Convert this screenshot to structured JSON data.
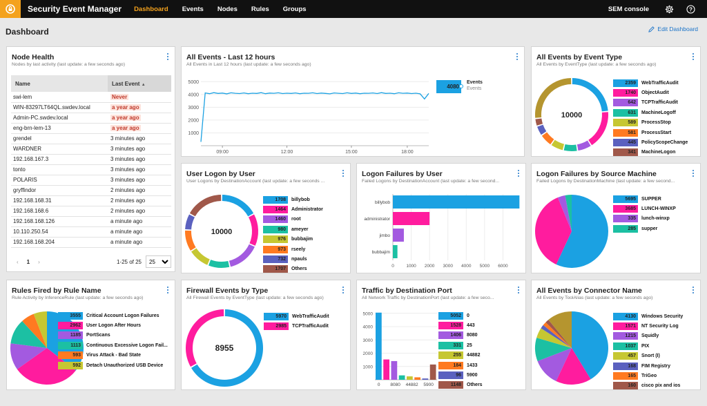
{
  "app": {
    "title": "Security Event Manager",
    "console": "SEM console"
  },
  "nav": [
    {
      "label": "Dashboard",
      "active": true
    },
    {
      "label": "Events",
      "active": false
    },
    {
      "label": "Nodes",
      "active": false
    },
    {
      "label": "Rules",
      "active": false
    },
    {
      "label": "Groups",
      "active": false
    }
  ],
  "page": {
    "title": "Dashboard",
    "edit_label": "Edit Dashboard"
  },
  "colors": {
    "blue": "#1ba1e2",
    "magenta": "#ff1c9e",
    "purple": "#a35ae0",
    "teal": "#1cc0a3",
    "olive": "#c6c732",
    "orange": "#ff7a21",
    "indigo": "#5b61bf",
    "brown": "#a0584a",
    "gold": "#b5952f",
    "accent": "#f4a21d"
  },
  "node_health": {
    "title": "Node Health",
    "subtitle": "Nodes by last activity (last update: a few seconds ago)",
    "col_name": "Name",
    "col_last": "Last Event",
    "rows": [
      {
        "name": "swi-lem",
        "last": "Never",
        "alert": true
      },
      {
        "name": "WIN-83297LT64QL.swdev.local",
        "last": "a year ago",
        "alert": true
      },
      {
        "name": "Admin-PC.swdev.local",
        "last": "a year ago",
        "alert": true
      },
      {
        "name": "eng-brn-lem-13",
        "last": "a year ago",
        "alert": true
      },
      {
        "name": "grendel",
        "last": "3 minutes ago",
        "alert": false
      },
      {
        "name": "WARDNER",
        "last": "3 minutes ago",
        "alert": false
      },
      {
        "name": "192.168.167.3",
        "last": "3 minutes ago",
        "alert": false
      },
      {
        "name": "tonto",
        "last": "3 minutes ago",
        "alert": false
      },
      {
        "name": "POLARIS",
        "last": "3 minutes ago",
        "alert": false
      },
      {
        "name": "gryffindor",
        "last": "2 minutes ago",
        "alert": false
      },
      {
        "name": "192.168.168.31",
        "last": "2 minutes ago",
        "alert": false
      },
      {
        "name": "192.168.168.6",
        "last": "2 minutes ago",
        "alert": false
      },
      {
        "name": "192.168.168.126",
        "last": "a minute ago",
        "alert": false
      },
      {
        "name": "10.110.250.54",
        "last": "a minute ago",
        "alert": false
      },
      {
        "name": "192.168.168.204",
        "last": "a minute ago",
        "alert": false
      }
    ],
    "pager": {
      "prev": "‹",
      "page": "1",
      "next": "›",
      "range": "1-25 of 25",
      "per_page": "25"
    }
  },
  "chart_data": [
    {
      "id": "all-events",
      "type": "line",
      "title": "All Events - Last 12 hours",
      "subtitle": "All Events in Last 12 hours (last update: a few seconds ago)",
      "x_ticks": [
        "09:00",
        "12:00",
        "15:00",
        "18:00"
      ],
      "y_ticks": [
        1000,
        2000,
        3000,
        4000,
        5000
      ],
      "ylim": [
        0,
        5500
      ],
      "series": [
        {
          "name": "Events",
          "values": [
            300,
            4120,
            4060,
            4140,
            4080,
            4110,
            4050,
            4130,
            4090,
            4070,
            4120,
            4060,
            4100,
            4080,
            4140,
            4060,
            4110,
            4090,
            4130,
            4070,
            4100,
            4080,
            4120,
            4060,
            4100,
            4090,
            4130,
            4070,
            4110,
            4080,
            4050,
            4120,
            4090,
            4070,
            4130,
            4080,
            4110,
            4060,
            4100,
            4090,
            4120,
            4070,
            4140,
            4080,
            4100,
            4060,
            4130,
            4090,
            4110,
            4070,
            4100,
            4050,
            3650,
            4080
          ]
        }
      ],
      "current_value": "4080",
      "current_label": "Events",
      "current_sub": "Events"
    },
    {
      "id": "event-type",
      "type": "donut",
      "title": "All Events by Event Type",
      "subtitle": "All Events by EventType (last update: a few seconds ago)",
      "center": "10000",
      "items": [
        {
          "value": 2359,
          "label": "WebTrafficAudit",
          "color": "#1ba1e2"
        },
        {
          "value": 1740,
          "label": "ObjectAudit",
          "color": "#ff1c9e"
        },
        {
          "value": 642,
          "label": "TCPTrafficAudit",
          "color": "#a35ae0"
        },
        {
          "value": 631,
          "label": "MachineLogoff",
          "color": "#1cc0a3"
        },
        {
          "value": 589,
          "label": "ProcessStop",
          "color": "#c6c732"
        },
        {
          "value": 581,
          "label": "ProcessStart",
          "color": "#ff7a21"
        },
        {
          "value": 445,
          "label": "PolicyScopeChange",
          "color": "#5b61bf"
        },
        {
          "value": 341,
          "label": "MachineLogon",
          "color": "#a0584a"
        }
      ],
      "others": 2672,
      "others_color": "#b5952f"
    },
    {
      "id": "user-logon",
      "type": "donut",
      "title": "User Logon by User",
      "subtitle": "User Logons by DestinationAccount (last update: a few seconds ...",
      "center": "10000",
      "items": [
        {
          "value": 1708,
          "label": "billybob",
          "color": "#1ba1e2"
        },
        {
          "value": 1464,
          "label": "Administrator",
          "color": "#ff1c9e"
        },
        {
          "value": 1460,
          "label": "root",
          "color": "#a35ae0"
        },
        {
          "value": 980,
          "label": "ameyer",
          "color": "#1cc0a3"
        },
        {
          "value": 976,
          "label": "bubbajim",
          "color": "#c6c732"
        },
        {
          "value": 973,
          "label": "rseely",
          "color": "#ff7a21"
        },
        {
          "value": 732,
          "label": "npauls",
          "color": "#5b61bf"
        },
        {
          "value": 1707,
          "label": "Others",
          "color": "#a0584a"
        }
      ]
    },
    {
      "id": "logon-failures-user",
      "type": "bar",
      "orientation": "horizontal",
      "title": "Logon Failures by User",
      "subtitle": "Failed Logons by DestinationAccount (last update: a few second...",
      "categories": [
        "billybob",
        "administrator",
        "jimbo",
        "bubbajim"
      ],
      "values": [
        6900,
        2000,
        600,
        250
      ],
      "colors": [
        "#1ba1e2",
        "#ff1c9e",
        "#a35ae0",
        "#1cc0a3"
      ],
      "x_ticks": [
        0,
        1000,
        2000,
        3000,
        4000,
        5000,
        6000
      ],
      "xlim": [
        0,
        7000
      ]
    },
    {
      "id": "logon-failures-machine",
      "type": "pie",
      "title": "Logon Failures by Source Machine",
      "subtitle": "Failed Logons by DestinationMachine (last update: a few second...",
      "items": [
        {
          "value": 5695,
          "label": "SUPPER",
          "color": "#1ba1e2"
        },
        {
          "value": 3685,
          "label": "LUNCH-WINXP",
          "color": "#ff1c9e"
        },
        {
          "value": 335,
          "label": "lunch-winxp",
          "color": "#a35ae0"
        },
        {
          "value": 285,
          "label": "supper",
          "color": "#1cc0a3"
        }
      ]
    },
    {
      "id": "rules-fired",
      "type": "pie",
      "title": "Rules Fired by Rule Name",
      "subtitle": "Rule Activity by InferenceRule (last update: a few seconds ago)",
      "items": [
        {
          "value": 3555,
          "label": "Critical Account Logon Failures",
          "color": "#1ba1e2"
        },
        {
          "value": 2962,
          "label": "User Logon After Hours",
          "color": "#ff1c9e"
        },
        {
          "value": 1185,
          "label": "PortScans",
          "color": "#a35ae0"
        },
        {
          "value": 1113,
          "label": "Continuous Excessive Logon Fail...",
          "color": "#1cc0a3"
        },
        {
          "value": 593,
          "label": "Virus Attack - Bad State",
          "color": "#ff7a21"
        },
        {
          "value": 592,
          "label": "Detach Unauthorized USB Device",
          "color": "#c6c732"
        }
      ]
    },
    {
      "id": "firewall",
      "type": "donut",
      "title": "Firewall Events by Type",
      "subtitle": "All Firewall Events by EventType (last update: a few seconds ago)",
      "center": "8955",
      "items": [
        {
          "value": 5970,
          "label": "WebTrafficAudit",
          "color": "#1ba1e2"
        },
        {
          "value": 2985,
          "label": "TCPTrafficAudit",
          "color": "#ff1c9e"
        }
      ]
    },
    {
      "id": "traffic-port",
      "type": "bar",
      "orientation": "vertical",
      "title": "Traffic by Destination Port",
      "subtitle": "All Network Traffic by DestinationPort (last update: a few seco...",
      "categories": [
        "0",
        "443",
        "8080",
        "25",
        "44882",
        "1433",
        "5900",
        "Others"
      ],
      "values": [
        5052,
        1528,
        1406,
        331,
        255,
        184,
        96,
        1148
      ],
      "colors": [
        "#1ba1e2",
        "#ff1c9e",
        "#a35ae0",
        "#1cc0a3",
        "#c6c732",
        "#ff7a21",
        "#5b61bf",
        "#a0584a"
      ],
      "x_tick_labels": [
        "0",
        "8080",
        "44882",
        "5900"
      ],
      "y_ticks": [
        1000,
        2000,
        3000,
        4000,
        5000
      ],
      "ylim": [
        0,
        5300
      ]
    },
    {
      "id": "connector",
      "type": "pie",
      "title": "All Events by Connector Name",
      "subtitle": "All Events by ToolAlias (last update: a few seconds ago)",
      "items": [
        {
          "value": 4130,
          "label": "Windows Security",
          "color": "#1ba1e2"
        },
        {
          "value": 1571,
          "label": "NT Security Log",
          "color": "#ff1c9e"
        },
        {
          "value": 1215,
          "label": "Squidly",
          "color": "#a35ae0"
        },
        {
          "value": 1037,
          "label": "PIX",
          "color": "#1cc0a3"
        },
        {
          "value": 457,
          "label": "Snort (I)",
          "color": "#c6c732"
        },
        {
          "value": 168,
          "label": "FIM Registry",
          "color": "#5b61bf"
        },
        {
          "value": 165,
          "label": "TriGeo",
          "color": "#ff7a21"
        },
        {
          "value": 160,
          "label": "cisco pix and ios",
          "color": "#a0584a"
        }
      ],
      "others": 1097,
      "others_color": "#b5952f"
    }
  ]
}
